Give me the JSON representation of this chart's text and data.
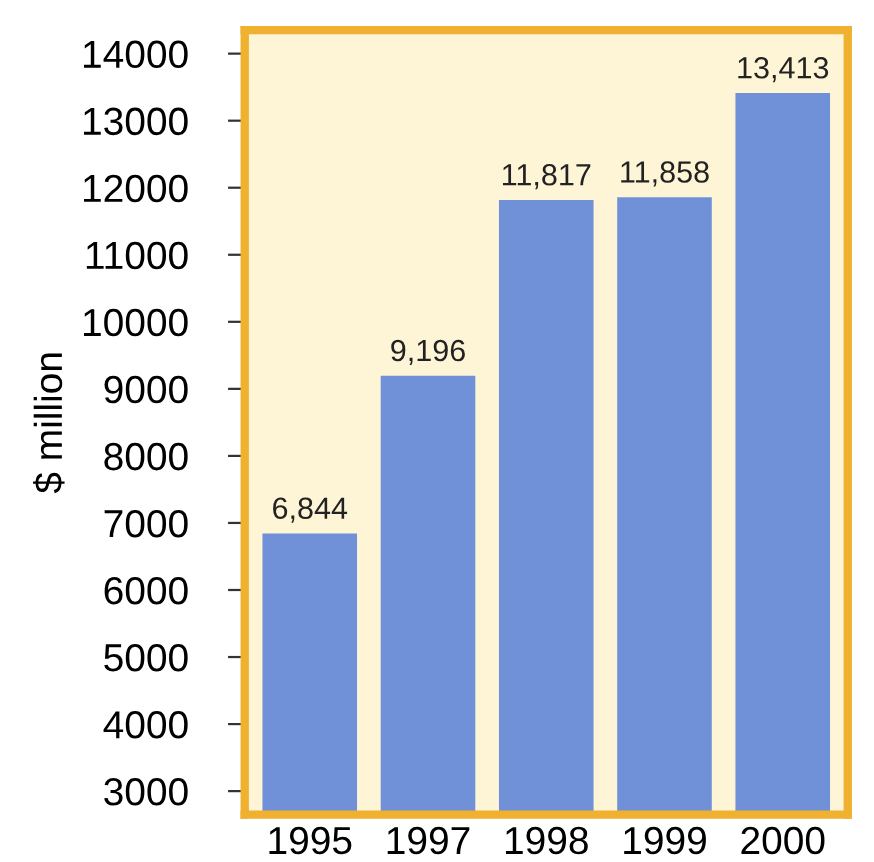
{
  "chart_data": {
    "type": "bar",
    "ylabel": "$ million",
    "categories": [
      "1995",
      "1997",
      "1998",
      "1999",
      "2000"
    ],
    "values": [
      6844,
      9196,
      11817,
      11858,
      13413
    ],
    "value_labels": [
      "6,844",
      "9,196",
      "11,817",
      "11,858",
      "13,413"
    ],
    "color": "#7090d8",
    "ylim": [
      2650,
      14350
    ],
    "yticks": [
      3000,
      4000,
      5000,
      6000,
      7000,
      8000,
      9000,
      10000,
      11000,
      12000,
      13000,
      14000
    ],
    "grid": false,
    "legend": false,
    "bands": [
      {
        "axis": "y",
        "from": 2650,
        "to": 14350,
        "color": "#fdf5d6"
      }
    ]
  }
}
